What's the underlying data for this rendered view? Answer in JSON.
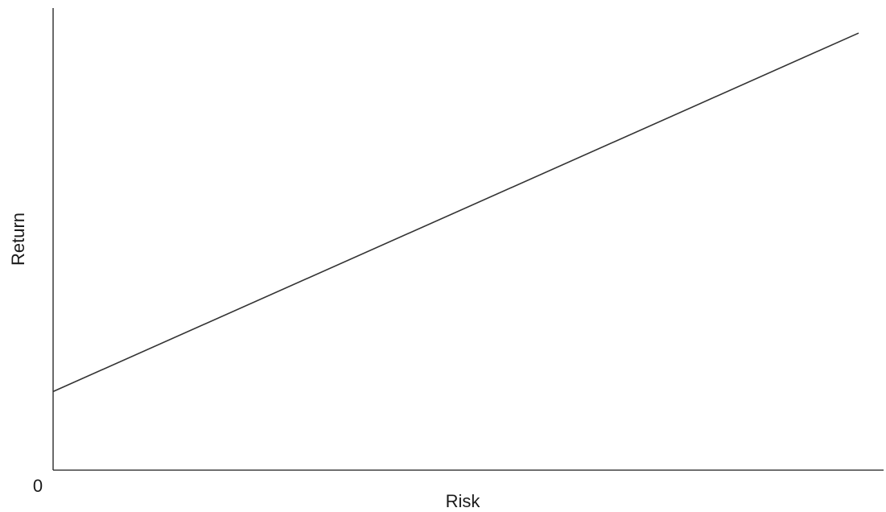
{
  "chart_data": {
    "type": "line",
    "title": "",
    "xlabel": "Risk",
    "ylabel": "Return",
    "origin_label": "0",
    "xlim": [
      0,
      1
    ],
    "ylim": [
      0,
      1
    ],
    "grid": false,
    "series": [
      {
        "x": [
          0,
          1
        ],
        "y": [
          0.175,
          0.973
        ]
      }
    ]
  }
}
